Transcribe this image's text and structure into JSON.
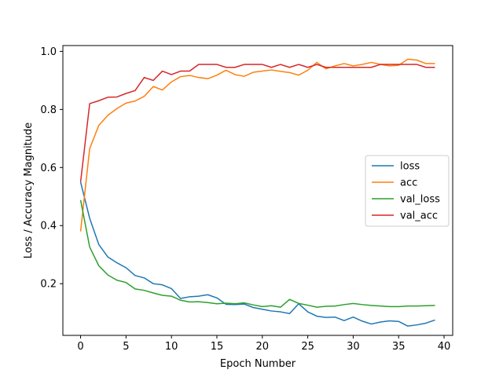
{
  "chart_data": {
    "type": "line",
    "title": "",
    "xlabel": "Epoch Number",
    "ylabel": "Loss / Accuracy Magnitude",
    "xlim": [
      -1.95,
      40.95
    ],
    "ylim": [
      0.022,
      1.02
    ],
    "xticks": [
      0,
      5,
      10,
      15,
      20,
      25,
      30,
      35,
      40
    ],
    "yticks": [
      0.2,
      0.4,
      0.6,
      0.8,
      1.0
    ],
    "grid": false,
    "legend_position": "center-right",
    "x": [
      0,
      1,
      2,
      3,
      4,
      5,
      6,
      7,
      8,
      9,
      10,
      11,
      12,
      13,
      14,
      15,
      16,
      17,
      18,
      19,
      20,
      21,
      22,
      23,
      24,
      25,
      26,
      27,
      28,
      29,
      30,
      31,
      32,
      33,
      34,
      35,
      36,
      37,
      38,
      39
    ],
    "series": [
      {
        "name": "loss",
        "color": "#1f77b4",
        "values": [
          0.55,
          0.425,
          0.335,
          0.292,
          0.272,
          0.255,
          0.228,
          0.22,
          0.2,
          0.196,
          0.183,
          0.149,
          0.155,
          0.157,
          0.162,
          0.151,
          0.129,
          0.128,
          0.13,
          0.118,
          0.112,
          0.106,
          0.103,
          0.097,
          0.131,
          0.103,
          0.088,
          0.084,
          0.085,
          0.073,
          0.085,
          0.071,
          0.061,
          0.068,
          0.072,
          0.07,
          0.054,
          0.058,
          0.064,
          0.075
        ]
      },
      {
        "name": "acc",
        "color": "#ff7f0e",
        "values": [
          0.38,
          0.665,
          0.745,
          0.78,
          0.803,
          0.822,
          0.829,
          0.845,
          0.879,
          0.867,
          0.895,
          0.913,
          0.917,
          0.91,
          0.906,
          0.918,
          0.935,
          0.92,
          0.914,
          0.928,
          0.932,
          0.936,
          0.931,
          0.927,
          0.918,
          0.935,
          0.962,
          0.94,
          0.95,
          0.958,
          0.95,
          0.955,
          0.962,
          0.955,
          0.95,
          0.952,
          0.973,
          0.97,
          0.958,
          0.958
        ]
      },
      {
        "name": "val_loss",
        "color": "#2ca02c",
        "values": [
          0.488,
          0.326,
          0.262,
          0.23,
          0.212,
          0.204,
          0.182,
          0.177,
          0.168,
          0.16,
          0.157,
          0.143,
          0.137,
          0.138,
          0.135,
          0.131,
          0.133,
          0.131,
          0.134,
          0.127,
          0.121,
          0.124,
          0.119,
          0.146,
          0.132,
          0.126,
          0.119,
          0.122,
          0.123,
          0.128,
          0.132,
          0.128,
          0.125,
          0.123,
          0.121,
          0.121,
          0.123,
          0.123,
          0.124,
          0.125
        ]
      },
      {
        "name": "val_acc",
        "color": "#d62728",
        "values": [
          0.55,
          0.82,
          0.83,
          0.842,
          0.843,
          0.855,
          0.865,
          0.91,
          0.9,
          0.932,
          0.92,
          0.932,
          0.932,
          0.955,
          0.955,
          0.955,
          0.945,
          0.945,
          0.955,
          0.955,
          0.955,
          0.945,
          0.955,
          0.945,
          0.955,
          0.945,
          0.955,
          0.945,
          0.945,
          0.945,
          0.945,
          0.945,
          0.945,
          0.955,
          0.955,
          0.955,
          0.955,
          0.955,
          0.945,
          0.945
        ]
      }
    ]
  }
}
